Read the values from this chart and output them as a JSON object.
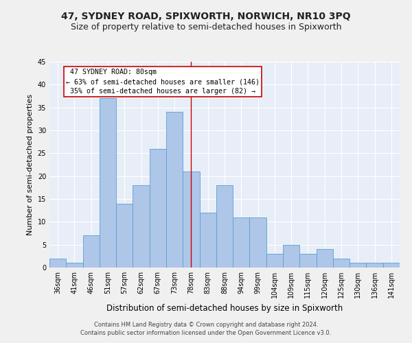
{
  "title": "47, SYDNEY ROAD, SPIXWORTH, NORWICH, NR10 3PQ",
  "subtitle": "Size of property relative to semi-detached houses in Spixworth",
  "xlabel": "Distribution of semi-detached houses by size in Spixworth",
  "ylabel": "Number of semi-detached properties",
  "bar_labels": [
    "36sqm",
    "41sqm",
    "46sqm",
    "51sqm",
    "57sqm",
    "62sqm",
    "67sqm",
    "73sqm",
    "78sqm",
    "83sqm",
    "88sqm",
    "94sqm",
    "99sqm",
    "104sqm",
    "109sqm",
    "115sqm",
    "120sqm",
    "125sqm",
    "130sqm",
    "136sqm",
    "141sqm"
  ],
  "bar_values": [
    2,
    1,
    7,
    37,
    14,
    18,
    26,
    34,
    21,
    12,
    18,
    11,
    11,
    3,
    5,
    3,
    4,
    2,
    1,
    1,
    1
  ],
  "bar_color": "#aec6e8",
  "bar_edge_color": "#5a9fd4",
  "property_label": "47 SYDNEY ROAD: 80sqm",
  "pct_smaller": 63,
  "n_smaller": 146,
  "pct_larger": 35,
  "n_larger": 82,
  "vline_bin_index": 8,
  "vline_color": "#cc0000",
  "annotation_box_color": "#cc0000",
  "ylim": [
    0,
    45
  ],
  "yticks": [
    0,
    5,
    10,
    15,
    20,
    25,
    30,
    35,
    40,
    45
  ],
  "bg_color": "#e8eef7",
  "grid_color": "#ffffff",
  "footer": "Contains HM Land Registry data © Crown copyright and database right 2024.\nContains public sector information licensed under the Open Government Licence v3.0.",
  "title_fontsize": 10,
  "subtitle_fontsize": 9,
  "tick_fontsize": 7,
  "ylabel_fontsize": 8,
  "xlabel_fontsize": 8.5,
  "footer_fontsize": 6
}
